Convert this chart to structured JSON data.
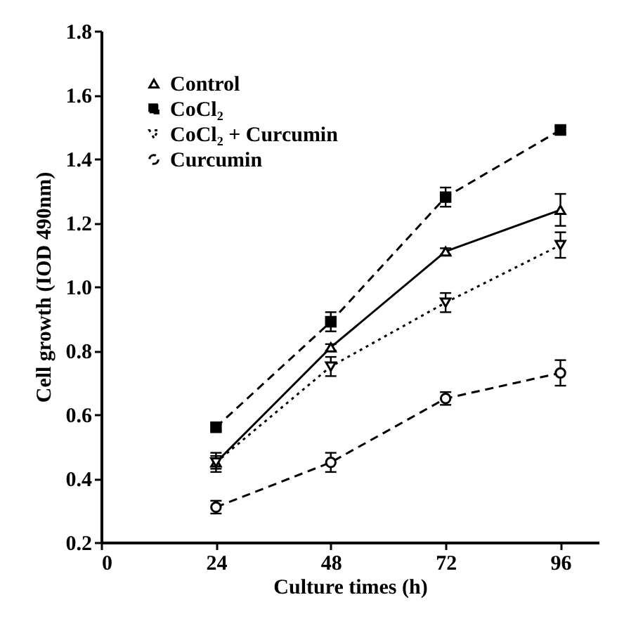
{
  "chart_data": {
    "type": "line",
    "xlabel": "Culture times (h)",
    "ylabel": "Cell growth (IOD 490nm)",
    "x": [
      24,
      48,
      72,
      96
    ],
    "series": [
      {
        "name": "Control",
        "color": "#000000",
        "values": [
          0.45,
          0.81,
          1.11,
          1.24
        ],
        "errors": [
          0.03,
          0.01,
          0.01,
          0.05
        ],
        "marker": "triangle",
        "line_style": "solid"
      },
      {
        "name": "CoCl₂",
        "color": "#000000",
        "values": [
          0.56,
          0.89,
          1.28,
          1.49
        ],
        "errors": [
          0.01,
          0.03,
          0.03,
          0.01
        ],
        "marker": "square",
        "line_style": "dashed"
      },
      {
        "name": "CoCl₂ + Curcumin",
        "color": "#000000",
        "values": [
          0.45,
          0.75,
          0.95,
          1.13
        ],
        "errors": [
          0.02,
          0.03,
          0.03,
          0.04
        ],
        "marker": "triangle-down",
        "line_style": "dotted"
      },
      {
        "name": "Curcumin",
        "color": "#000000",
        "values": [
          0.31,
          0.45,
          0.65,
          0.73
        ],
        "errors": [
          0.02,
          0.03,
          0.02,
          0.04
        ],
        "marker": "circle",
        "line_style": "dashed"
      }
    ],
    "xlim": [
      0,
      104
    ],
    "xticks": [
      0,
      24,
      48,
      72,
      96
    ],
    "ylim": [
      0.2,
      1.8
    ],
    "yticks": [
      0.2,
      0.4,
      0.6,
      0.8,
      {
        "value": 1,
        "label": "1.0"
      },
      1.2,
      1.4,
      1.6,
      1.8
    ],
    "grid": false,
    "legend": "top left"
  }
}
